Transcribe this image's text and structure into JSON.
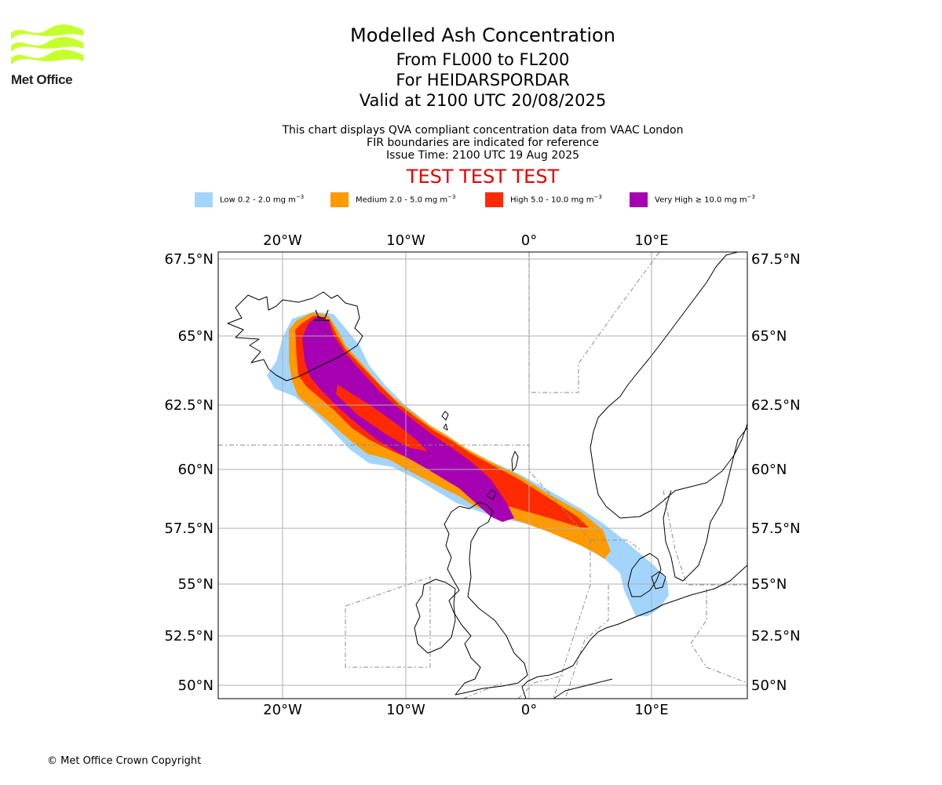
{
  "logo": {
    "text": "Met Office",
    "color": "#c6ff2e"
  },
  "title": "Modelled Ash Concentration",
  "subtitle_levels": "From FL000 to FL200",
  "subtitle_source": "For HEIDARSPORDAR",
  "subtitle_valid": "Valid at 2100 UTC 20/08/2025",
  "info_line1": "This chart displays QVA compliant concentration data from VAAC London",
  "info_line2": "FIR boundaries are indicated for reference",
  "info_line3": "Issue Time: 2100 UTC 19 Aug 2025",
  "test_banner": "TEST TEST TEST",
  "legend": [
    {
      "label": "Low 0.2 - 2.0 mg m",
      "exp": "−3",
      "color": "#a3d4fb"
    },
    {
      "label": "Medium 2.0 - 5.0 mg m",
      "exp": "−3",
      "color": "#ff9a00"
    },
    {
      "label": "High 5.0 - 10.0 mg m",
      "exp": "−3",
      "color": "#ff2a00"
    },
    {
      "label": "Very High ≥ 10.0 mg m",
      "exp": "−3",
      "color": "#a600b2"
    }
  ],
  "axes": {
    "lon_labels": [
      "20°W",
      "10°W",
      "0°",
      "10°E"
    ],
    "lat_labels": [
      "67.5°N",
      "65°N",
      "62.5°N",
      "60°N",
      "57.5°N",
      "55°N",
      "52.5°N",
      "50°N"
    ]
  },
  "copyright": "© Met Office Crown Copyright"
}
